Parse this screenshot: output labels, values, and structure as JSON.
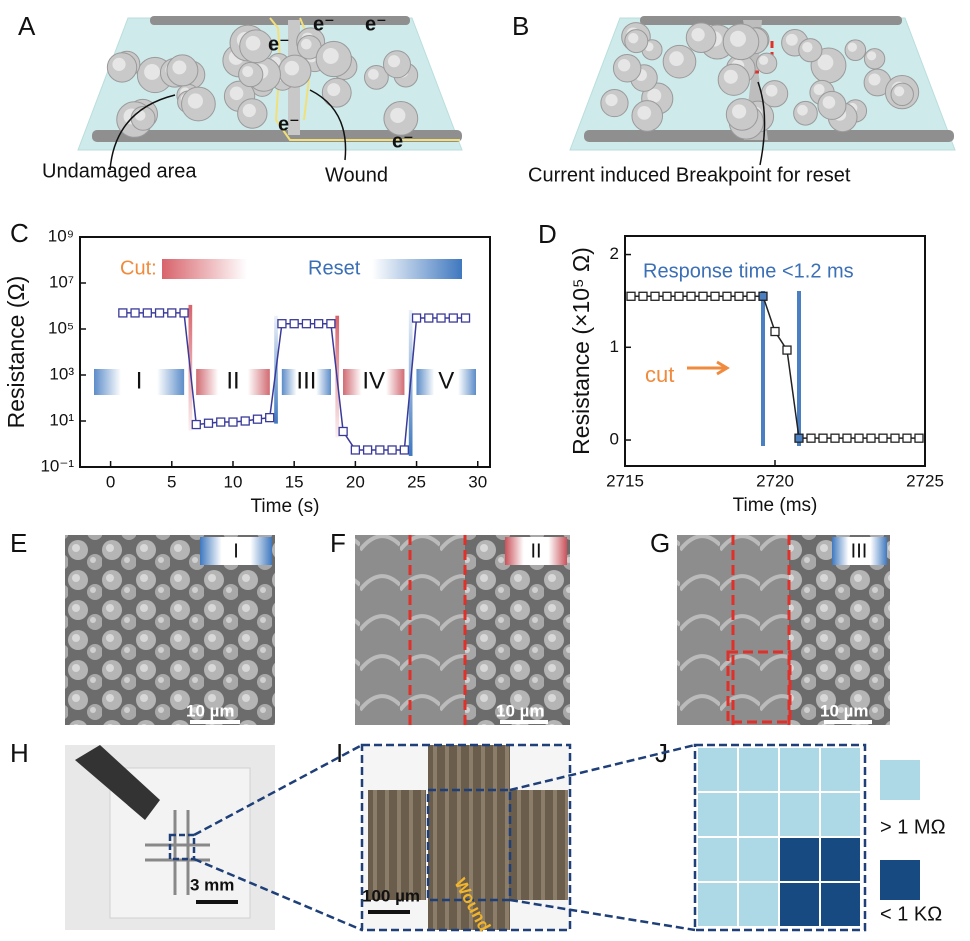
{
  "panel_letters": [
    "A",
    "B",
    "C",
    "D",
    "E",
    "F",
    "G",
    "H",
    "I",
    "J"
  ],
  "panel_a": {
    "electron": "e⁻",
    "undamaged": "Undamaged area",
    "wound": "Wound"
  },
  "panel_b": {
    "breakpoint": "Current induced Breakpoint for reset"
  },
  "panel_e": {
    "state": "I",
    "scale": "10 µm"
  },
  "panel_f": {
    "state": "II",
    "scale": "10 µm"
  },
  "panel_g": {
    "state": "III",
    "scale": "10 µm"
  },
  "panel_h": {
    "scale": "3 mm"
  },
  "panel_i": {
    "scale": "100 µm",
    "wound": "Wound"
  },
  "panel_j": {
    "high": "> 1 MΩ",
    "low": "< 1 KΩ"
  },
  "chart_data": [
    {
      "type": "line",
      "xlabel": "Time (s)",
      "ylabel": "Resistance (Ω)",
      "yscale": "log",
      "color": "#3a3a9a",
      "xlim": [
        -2.5,
        31
      ],
      "xticks": [
        0,
        5,
        10,
        15,
        20,
        25,
        30
      ],
      "ylim": [
        0.1,
        1000000000
      ],
      "yticks": [
        {
          "value": 0.1,
          "label": "10⁻¹"
        },
        {
          "value": 10,
          "label": "10¹"
        },
        {
          "value": 1000,
          "label": "10³"
        },
        {
          "value": 100000,
          "label": "10⁵"
        },
        {
          "value": 10000000,
          "label": "10⁷"
        },
        {
          "value": 1000000000,
          "label": "10⁹"
        }
      ],
      "x": [
        1,
        2,
        3,
        4,
        5,
        6,
        7,
        8,
        9,
        10,
        11,
        12,
        13,
        14,
        15,
        16,
        17,
        18,
        19,
        20,
        21,
        22,
        23,
        24,
        25,
        26,
        27,
        28,
        29
      ],
      "values": [
        500000,
        500000,
        500000,
        500000,
        500000,
        500000,
        7,
        8,
        9,
        9,
        10,
        12,
        14,
        170000,
        170000,
        170000,
        170000,
        170000,
        3.5,
        0.55,
        0.55,
        0.55,
        0.55,
        0.55,
        300000,
        300000,
        300000,
        300000,
        300000
      ],
      "annotations": {
        "cut": "Cut:",
        "reset": "Reset",
        "regions": [
          "I",
          "II",
          "III",
          "IV",
          "V"
        ]
      }
    },
    {
      "type": "line",
      "xlabel": "Time (ms)",
      "ylabel": "Resistance (×10⁵ Ω)",
      "yscale": "linear",
      "color": "#222222",
      "xlim": [
        2715,
        2725
      ],
      "xticks": [
        2715,
        2720,
        2725
      ],
      "ylim": [
        -0.28,
        2.2
      ],
      "yticks": [
        0,
        1,
        2
      ],
      "x": [
        2715.2,
        2715.6,
        2716.0,
        2716.4,
        2716.8,
        2717.2,
        2717.6,
        2718.0,
        2718.4,
        2718.8,
        2719.2,
        2719.6,
        2720.0,
        2720.4,
        2720.8,
        2721.2,
        2721.6,
        2722.0,
        2722.4,
        2722.8,
        2723.2,
        2723.6,
        2724.0,
        2724.4,
        2724.8
      ],
      "values": [
        1.55,
        1.55,
        1.55,
        1.55,
        1.55,
        1.55,
        1.55,
        1.55,
        1.55,
        1.55,
        1.55,
        1.55,
        1.17,
        0.97,
        0.02,
        0.02,
        0.02,
        0.02,
        0.02,
        0.02,
        0.02,
        0.02,
        0.02,
        0.02,
        0.02
      ],
      "vlines": [
        2719.6,
        2720.8
      ],
      "vline_color": "#4a7fc1",
      "annotations": {
        "response": "Response time <1.2 ms",
        "cut": "cut"
      }
    }
  ]
}
